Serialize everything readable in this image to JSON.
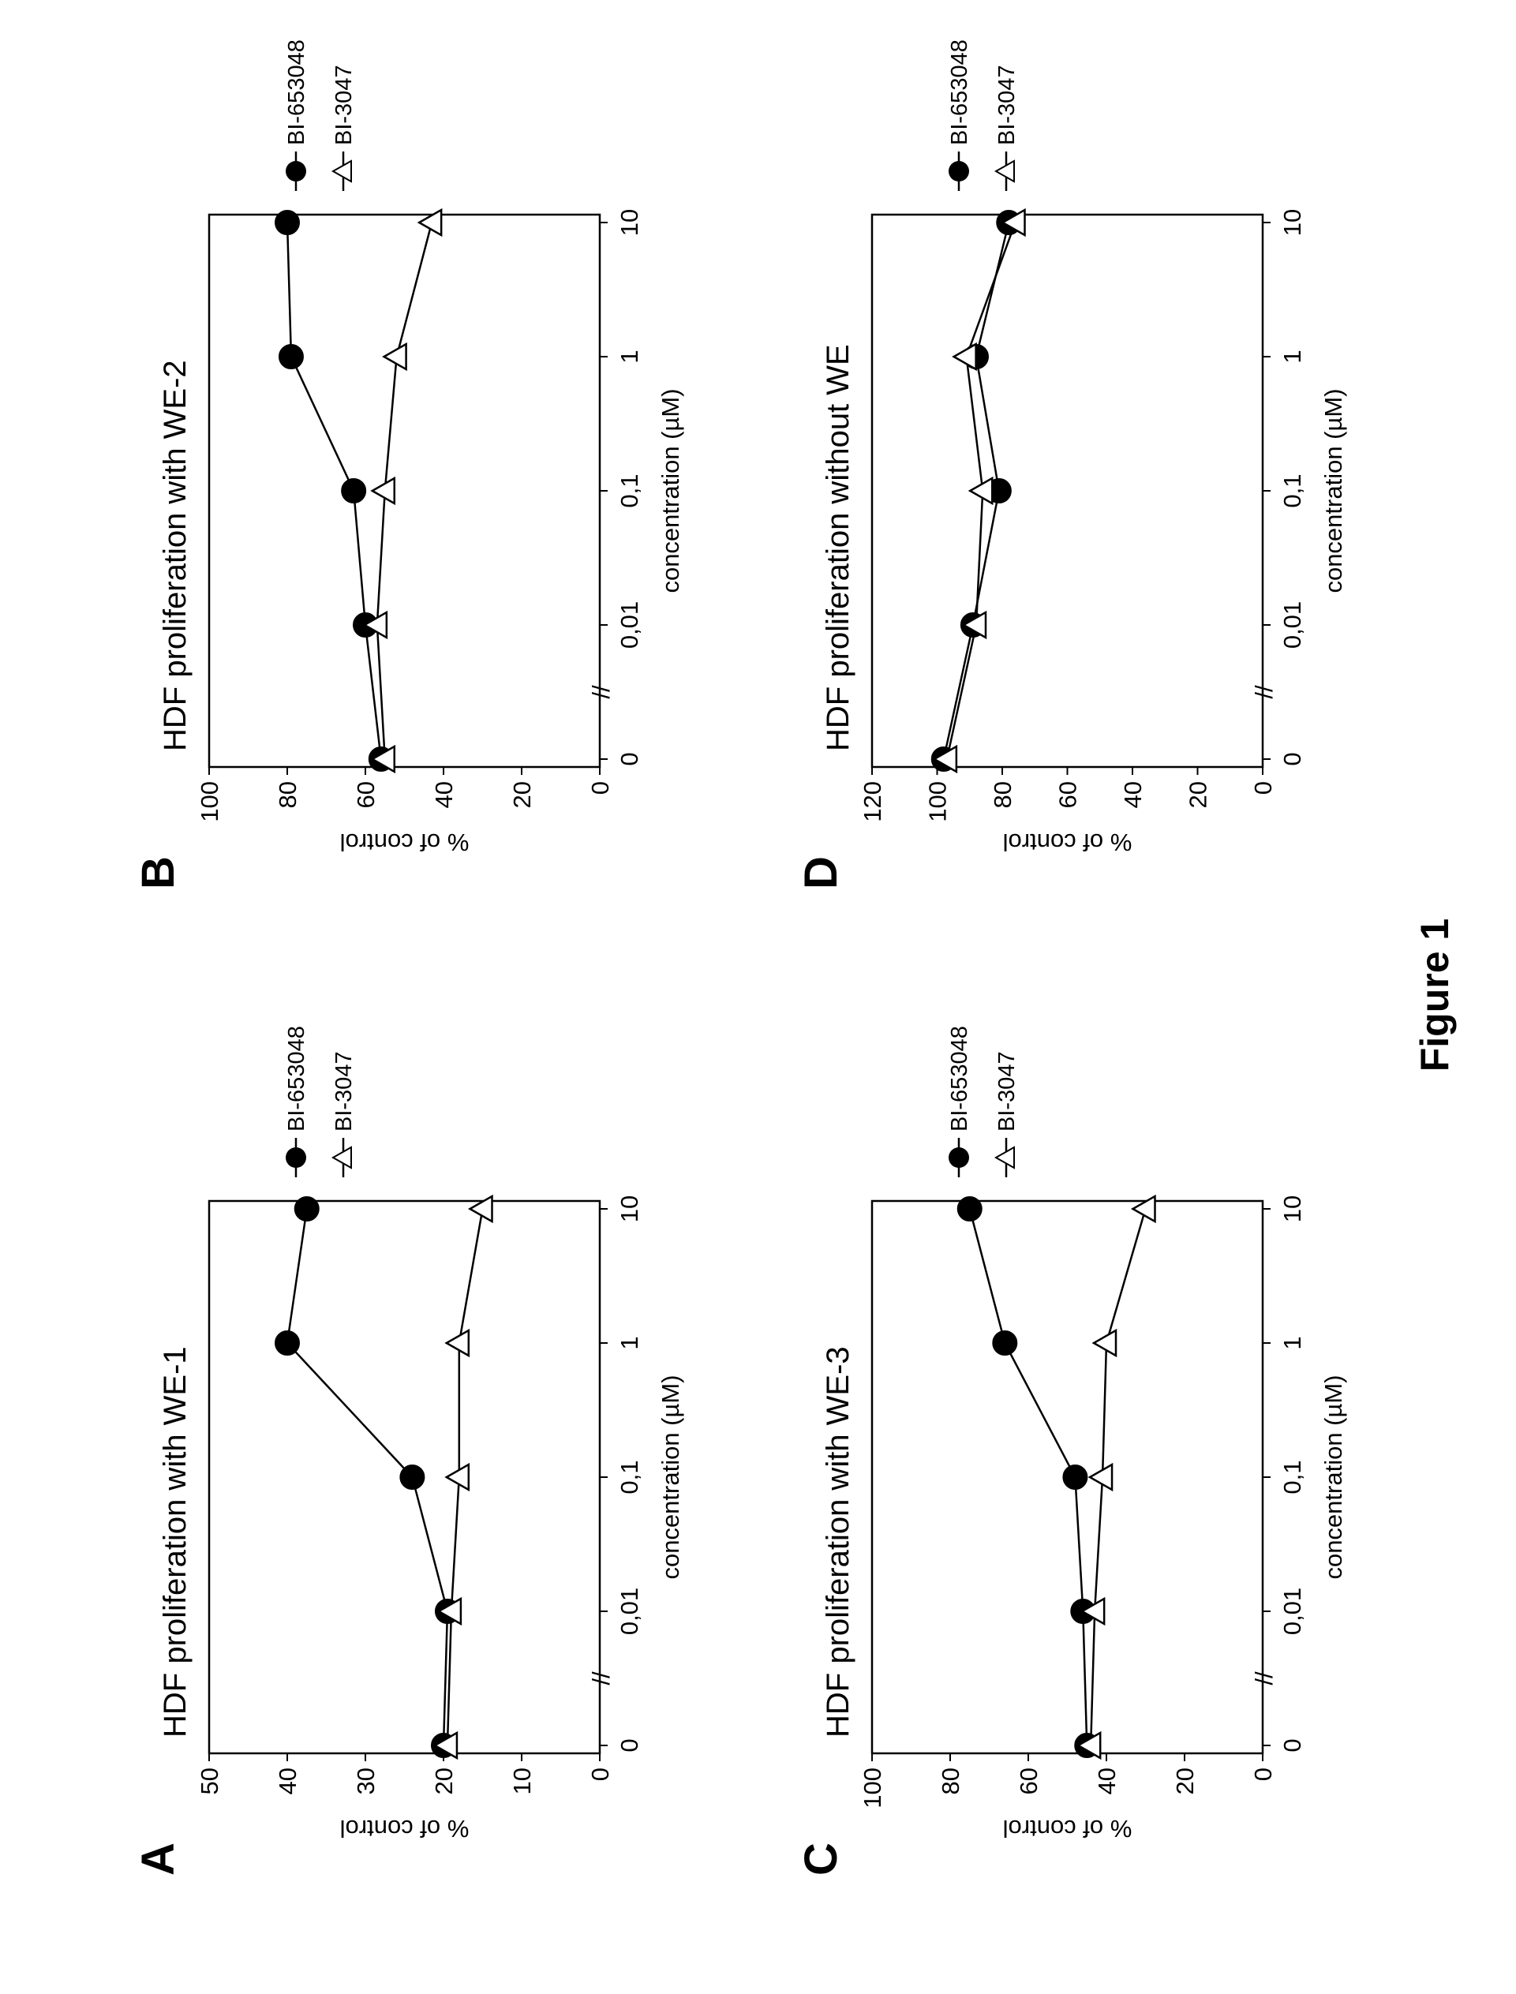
{
  "figure_label": "Figure 1",
  "chart_data": [
    {
      "panel": "A",
      "type": "line",
      "title": "HDF proliferation with WE-1",
      "xlabel": "concentration (µM)",
      "ylabel": "% of control",
      "x_categories": [
        "0",
        "0,01",
        "0,1",
        "1",
        "10"
      ],
      "ylim": [
        0,
        50
      ],
      "y_ticks": [
        0,
        10,
        20,
        30,
        40,
        50
      ],
      "axis_break": "//",
      "series": [
        {
          "name": "BI-653048",
          "marker": "filled-circle",
          "values": [
            20,
            19.5,
            24,
            40,
            37.5
          ]
        },
        {
          "name": "BI-3047",
          "marker": "open-triangle",
          "values": [
            19.5,
            19,
            18,
            18,
            15
          ]
        }
      ]
    },
    {
      "panel": "B",
      "type": "line",
      "title": "HDF proliferation with WE-2",
      "xlabel": "concentration (µM)",
      "ylabel": "% of control",
      "x_categories": [
        "0",
        "0,01",
        "0,1",
        "1",
        "10"
      ],
      "ylim": [
        0,
        100
      ],
      "y_ticks": [
        0,
        20,
        40,
        60,
        80,
        100
      ],
      "axis_break": "//",
      "series": [
        {
          "name": "BI-653048",
          "marker": "filled-circle",
          "values": [
            56,
            60,
            63,
            79,
            80
          ]
        },
        {
          "name": "BI-3047",
          "marker": "open-triangle",
          "values": [
            55,
            57,
            55,
            52,
            43
          ]
        }
      ]
    },
    {
      "panel": "C",
      "type": "line",
      "title": "HDF proliferation with WE-3",
      "xlabel": "concentration (µM)",
      "ylabel": "% of control",
      "x_categories": [
        "0",
        "0,01",
        "0,1",
        "1",
        "10"
      ],
      "ylim": [
        0,
        100
      ],
      "y_ticks": [
        0,
        20,
        40,
        60,
        80,
        100
      ],
      "axis_break": "//",
      "series": [
        {
          "name": "BI-653048",
          "marker": "filled-circle",
          "values": [
            45,
            46,
            48,
            66,
            75
          ]
        },
        {
          "name": "BI-3047",
          "marker": "open-triangle",
          "values": [
            44,
            43,
            41,
            40,
            30
          ]
        }
      ]
    },
    {
      "panel": "D",
      "type": "line",
      "title": "HDF proliferation without WE",
      "xlabel": "concentration (µM)",
      "ylabel": "% of control",
      "x_categories": [
        "0",
        "0,01",
        "0,1",
        "1",
        "10"
      ],
      "ylim": [
        0,
        120
      ],
      "y_ticks": [
        0,
        20,
        40,
        60,
        80,
        100,
        120
      ],
      "axis_break": "//",
      "series": [
        {
          "name": "BI-653048",
          "marker": "filled-circle",
          "values": [
            98,
            89,
            81,
            88,
            78
          ]
        },
        {
          "name": "BI-3047",
          "marker": "open-triangle",
          "values": [
            97,
            88,
            86,
            91,
            76
          ]
        }
      ]
    }
  ]
}
